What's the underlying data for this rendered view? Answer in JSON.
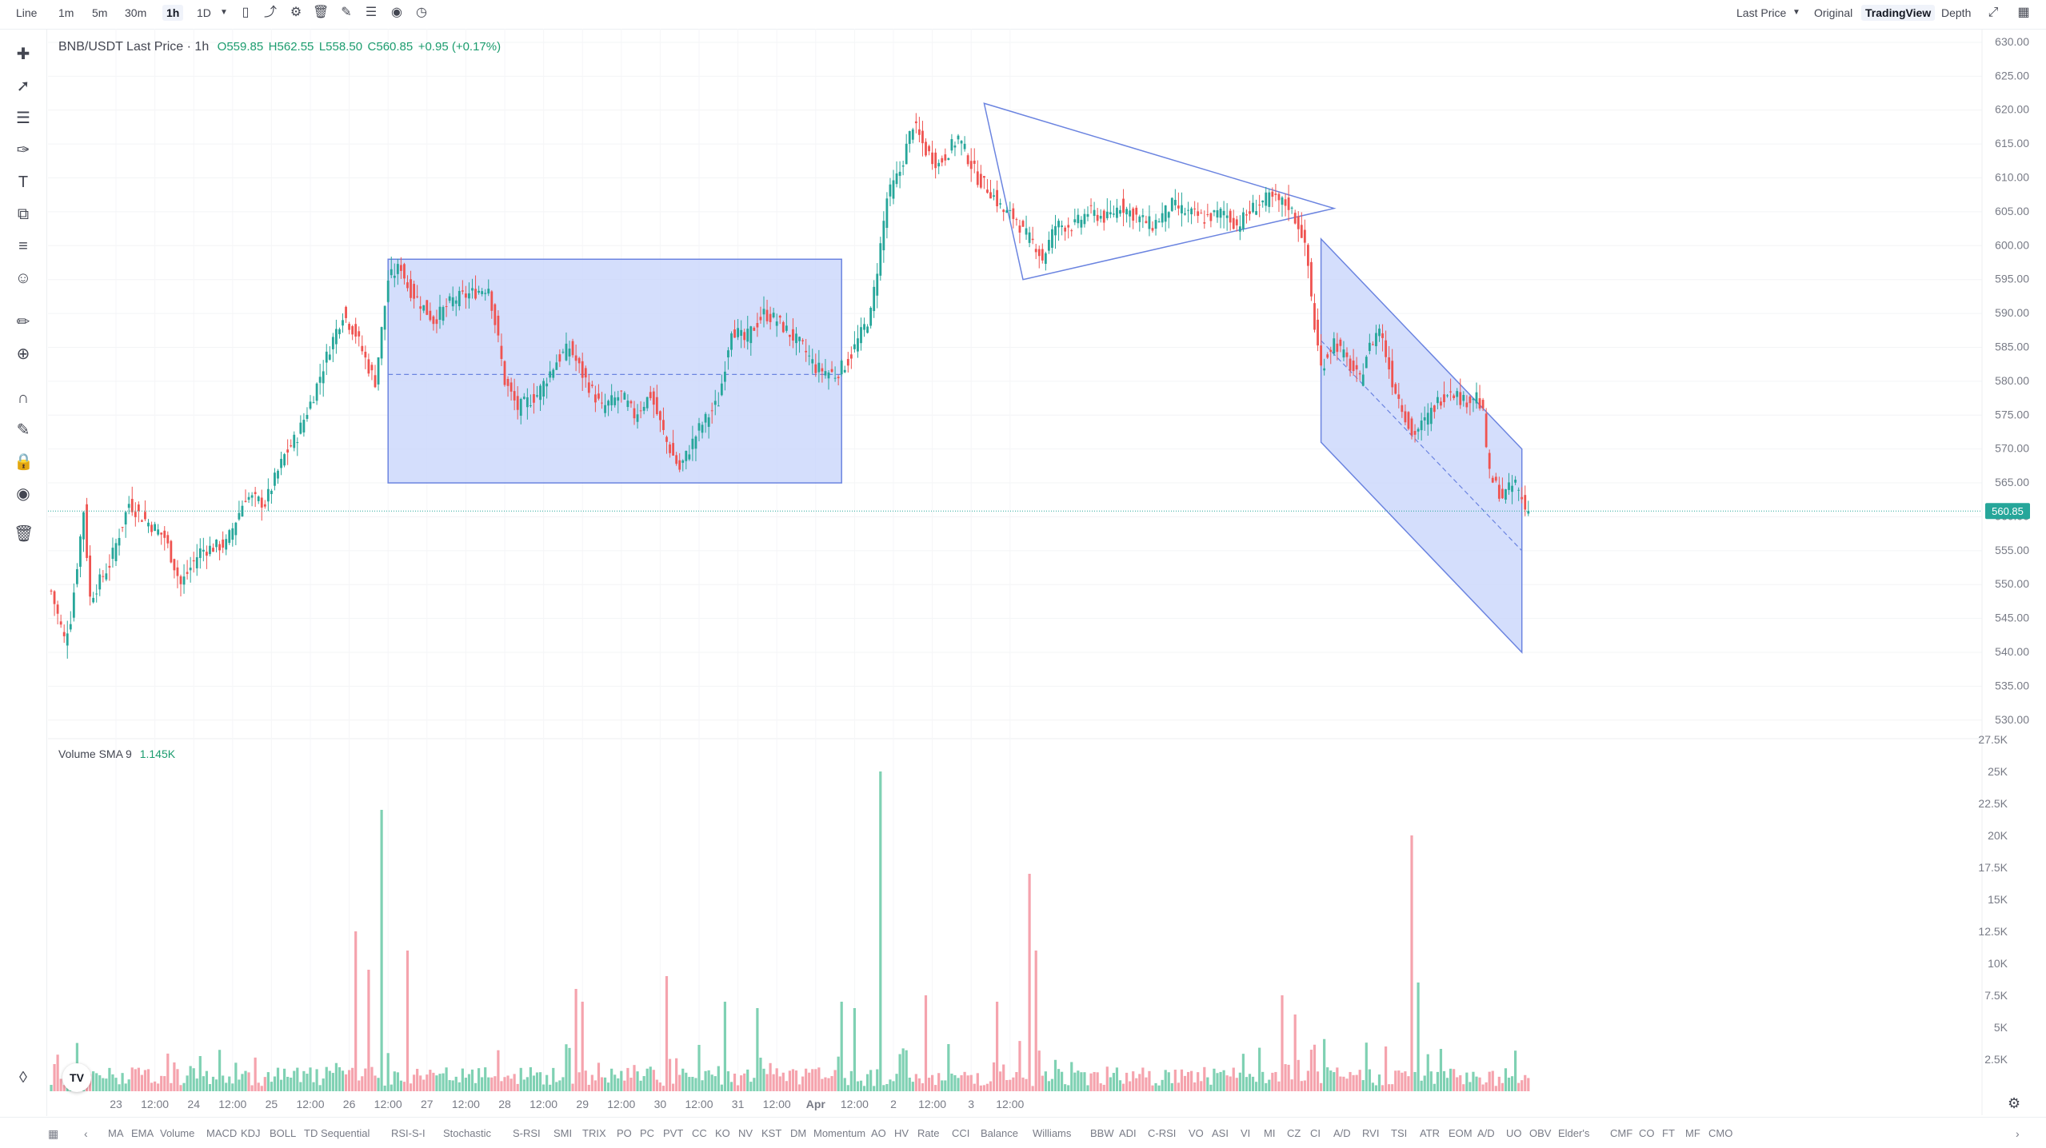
{
  "toolbar": {
    "chart_type": "Line",
    "intervals": [
      "1m",
      "5m",
      "30m",
      "1h",
      "1D"
    ],
    "active_interval": "1h",
    "price_source": "Last Price",
    "views": [
      "Original",
      "TradingView",
      "Depth"
    ],
    "active_view": "TradingView"
  },
  "legend": {
    "symbol": "BNB/USDT Last Price · 1h",
    "open": "O559.85",
    "high": "H562.55",
    "low": "L558.50",
    "close": "C560.85",
    "change": "+0.95 (+0.17%)"
  },
  "volume_legend": {
    "label": "Volume SMA 9",
    "value": "1.145K"
  },
  "current_price": "560.85",
  "indicators": [
    "MA",
    "EMA",
    "Volume",
    "MACD",
    "KDJ",
    "BOLL",
    "TD Sequential",
    "RSI-S-I",
    "Stochastic",
    "S-RSI",
    "SMI",
    "TRIX",
    "PO",
    "PC",
    "PVT",
    "CC",
    "KO",
    "NV",
    "KST",
    "DM",
    "Momentum",
    "AO",
    "HV",
    "Rate",
    "CCI",
    "Balance",
    "Williams",
    "BBW",
    "ADI",
    "C-RSI",
    "VO",
    "ASI",
    "VI",
    "MI",
    "CZ",
    "CI",
    "A/D",
    "RVI",
    "TSI",
    "ATR",
    "EOM",
    "A/D",
    "UO",
    "OBV",
    "Elder's",
    "CMF",
    "CO",
    "FT",
    "MF",
    "CMO"
  ],
  "colors": {
    "up": "#26a69a",
    "down": "#ef5350",
    "up_vol": "#7fd1b3",
    "down_vol": "#f5a3ad",
    "pattern_fill": "#c9d6fb",
    "pattern_line": "#6b84e0"
  },
  "chart_data": [
    {
      "type": "candlestick",
      "interval": "1h",
      "price_axis": {
        "ticks": [
          "630.00",
          "625.00",
          "620.00",
          "615.00",
          "610.00",
          "605.00",
          "600.00",
          "595.00",
          "590.00",
          "585.00",
          "580.00",
          "575.00",
          "570.00",
          "565.00",
          "560.00",
          "555.00",
          "550.00",
          "545.00",
          "540.00",
          "535.00",
          "530.00"
        ],
        "range": [
          527.5,
          632
        ]
      },
      "time_axis": {
        "ticks": [
          "23",
          "12:00",
          "24",
          "12:00",
          "25",
          "12:00",
          "26",
          "12:00",
          "27",
          "12:00",
          "28",
          "12:00",
          "29",
          "12:00",
          "30",
          "12:00",
          "31",
          "12:00",
          "Apr",
          "12:00",
          "2",
          "12:00",
          "3",
          "12:00"
        ]
      },
      "path_waypoints": [
        [
          0,
          549
        ],
        [
          4,
          542
        ],
        [
          6,
          545
        ],
        [
          10,
          561
        ],
        [
          12,
          548
        ],
        [
          18,
          553
        ],
        [
          24,
          562
        ],
        [
          28,
          560
        ],
        [
          35,
          557
        ],
        [
          40,
          550
        ],
        [
          46,
          555
        ],
        [
          54,
          556
        ],
        [
          60,
          563
        ],
        [
          66,
          562
        ],
        [
          72,
          569
        ],
        [
          76,
          572
        ],
        [
          81,
          578
        ],
        [
          86,
          585
        ],
        [
          90,
          590
        ],
        [
          94,
          587
        ],
        [
          98,
          582
        ],
        [
          100,
          580
        ],
        [
          104,
          595
        ],
        [
          108,
          597
        ],
        [
          110,
          594
        ],
        [
          118,
          589
        ],
        [
          124,
          592
        ],
        [
          130,
          593
        ],
        [
          135,
          594
        ],
        [
          138,
          586
        ],
        [
          140,
          580
        ],
        [
          144,
          576
        ],
        [
          150,
          578
        ],
        [
          156,
          583
        ],
        [
          160,
          585
        ],
        [
          164,
          581
        ],
        [
          170,
          576
        ],
        [
          176,
          578
        ],
        [
          180,
          575
        ],
        [
          185,
          578
        ],
        [
          190,
          571
        ],
        [
          194,
          567
        ],
        [
          200,
          573
        ],
        [
          206,
          577
        ],
        [
          210,
          588
        ],
        [
          214,
          586
        ],
        [
          220,
          590
        ],
        [
          224,
          589
        ],
        [
          232,
          585
        ],
        [
          236,
          582
        ],
        [
          242,
          581
        ],
        [
          246,
          583
        ],
        [
          250,
          587
        ],
        [
          253,
          590
        ],
        [
          256,
          600
        ],
        [
          258,
          607
        ],
        [
          262,
          611
        ],
        [
          266,
          618
        ],
        [
          270,
          614
        ],
        [
          274,
          612
        ],
        [
          280,
          616
        ],
        [
          284,
          612
        ],
        [
          286,
          610
        ],
        [
          290,
          608
        ],
        [
          294,
          605
        ],
        [
          298,
          604
        ],
        [
          300,
          602
        ],
        [
          304,
          600
        ],
        [
          306,
          598
        ],
        [
          310,
          603
        ],
        [
          316,
          603
        ],
        [
          320,
          605
        ],
        [
          326,
          604
        ],
        [
          330,
          606
        ],
        [
          336,
          604
        ],
        [
          340,
          603
        ],
        [
          346,
          606
        ],
        [
          350,
          605
        ],
        [
          356,
          604
        ],
        [
          362,
          605
        ],
        [
          366,
          603
        ],
        [
          372,
          606
        ],
        [
          376,
          607
        ],
        [
          382,
          606
        ],
        [
          384,
          604
        ],
        [
          386,
          602
        ],
        [
          388,
          597
        ],
        [
          390,
          588
        ],
        [
          392,
          582
        ],
        [
          396,
          586
        ],
        [
          400,
          583
        ],
        [
          404,
          580
        ],
        [
          406,
          584
        ],
        [
          410,
          588
        ],
        [
          414,
          580
        ],
        [
          418,
          575
        ],
        [
          420,
          572
        ],
        [
          424,
          574
        ],
        [
          428,
          577
        ],
        [
          432,
          579
        ],
        [
          436,
          577
        ],
        [
          440,
          578
        ],
        [
          442,
          575
        ],
        [
          444,
          566
        ],
        [
          448,
          563
        ],
        [
          452,
          565
        ],
        [
          456,
          560
        ]
      ],
      "last_close": 560.85,
      "shapes": [
        {
          "type": "rectangle",
          "from_bar": 104,
          "to_bar": 244,
          "top": 598,
          "bottom": 565,
          "midline": 581
        },
        {
          "type": "triangle",
          "apex_bar": 288,
          "apex_price": 621,
          "top_end_bar": 396,
          "top_end_price": 605.5,
          "bottom_bar": 300,
          "bottom_price": 595
        },
        {
          "type": "parallel_channel",
          "from_bar": 392,
          "to_bar": 454,
          "upper_start": 601,
          "upper_end": 570,
          "lower_start": 571,
          "lower_end": 540
        }
      ]
    },
    {
      "type": "bar",
      "series": "volume",
      "value_axis": {
        "ticks": [
          "27.5K",
          "25K",
          "22.5K",
          "20K",
          "17.5K",
          "15K",
          "12.5K",
          "10K",
          "7.5K",
          "5K",
          "2.5K"
        ],
        "range": [
          0,
          27500
        ]
      },
      "spikes": [
        [
          94,
          12500
        ],
        [
          98,
          9500
        ],
        [
          102,
          22000
        ],
        [
          110,
          11000
        ],
        [
          162,
          8000
        ],
        [
          164,
          7000
        ],
        [
          190,
          9000
        ],
        [
          208,
          7000
        ],
        [
          218,
          6500
        ],
        [
          244,
          7000
        ],
        [
          248,
          6500
        ],
        [
          256,
          25000
        ],
        [
          270,
          7500
        ],
        [
          292,
          7000
        ],
        [
          302,
          17000
        ],
        [
          304,
          11000
        ],
        [
          380,
          7500
        ],
        [
          384,
          6000
        ],
        [
          420,
          20000
        ],
        [
          422,
          8500
        ],
        [
          406,
          3800
        ],
        [
          412,
          3500
        ]
      ]
    }
  ]
}
